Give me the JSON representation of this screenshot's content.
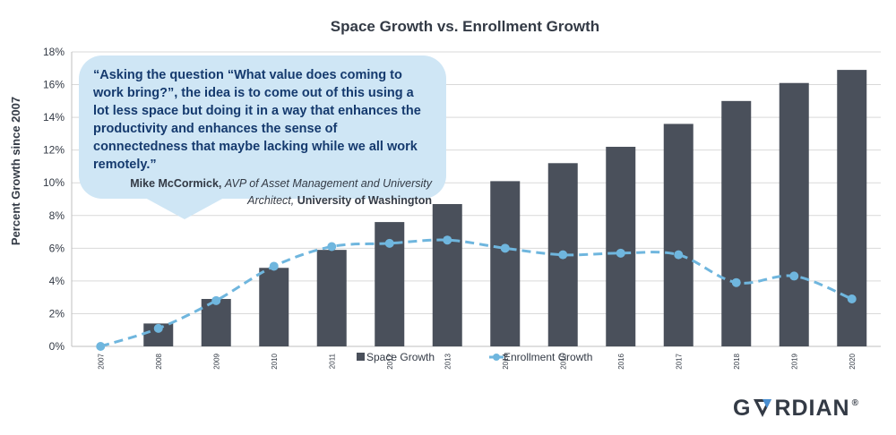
{
  "chart_data": {
    "type": "bar",
    "title": "Space Growth vs. Enrollment Growth",
    "xlabel": "",
    "ylabel": "Percent Growth since 2007",
    "categories": [
      "2007",
      "2008",
      "2009",
      "2010",
      "2011",
      "2012",
      "2013",
      "2014",
      "2015",
      "2016",
      "2017",
      "2018",
      "2019",
      "2020"
    ],
    "y_ticks": [
      "0%",
      "2%",
      "4%",
      "6%",
      "8%",
      "10%",
      "12%",
      "14%",
      "16%",
      "18%"
    ],
    "ylim": [
      0,
      18
    ],
    "grid": true,
    "legend_position": "bottom",
    "series": [
      {
        "name": "Space Growth",
        "type": "bar",
        "color": "#4a505b",
        "values": [
          0,
          1.4,
          2.9,
          4.8,
          5.9,
          7.6,
          8.7,
          10.1,
          11.2,
          12.2,
          13.6,
          15.0,
          16.1,
          16.9
        ]
      },
      {
        "name": "Enrollment Growth",
        "type": "line",
        "style": "dashed-smooth",
        "color": "#6fb6de",
        "values": [
          0,
          1.1,
          2.8,
          4.9,
          6.1,
          6.3,
          6.5,
          6.0,
          5.6,
          5.7,
          5.6,
          3.9,
          4.3,
          2.9
        ]
      }
    ]
  },
  "quote": {
    "text": "“Asking the question “What value does coming to work bring?”, the idea is to come out of this using a lot less space but doing it in a way that enhances the productivity and enhances the sense of connectedness that maybe lacking while we all work remotely.”",
    "name": "Mike McCormick,",
    "role": "AVP of Asset Management and University Architect,",
    "org": "University of Washington"
  },
  "logo": {
    "text_before": "G",
    "text_after": "RDIAN",
    "registered": "®"
  },
  "colors": {
    "bar": "#4a505b",
    "line": "#6fb6de",
    "bubble": "#cfe6f5",
    "quote_text": "#153a6e"
  }
}
